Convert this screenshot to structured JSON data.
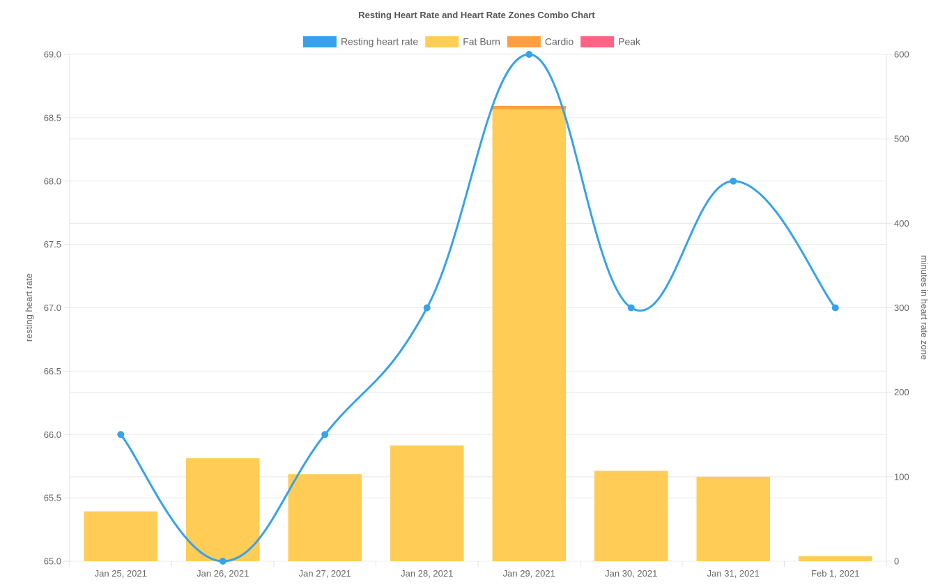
{
  "chart_data": {
    "type": "bar+line",
    "title": "Resting Heart Rate and Heart Rate Zones Combo Chart",
    "categories": [
      "Jan 25, 2021",
      "Jan 26, 2021",
      "Jan 27, 2021",
      "Jan 28, 2021",
      "Jan 29, 2021",
      "Jan 30, 2021",
      "Jan 31, 2021",
      "Feb 1, 2021"
    ],
    "y_left": {
      "label": "resting heart rate",
      "min": 65.0,
      "max": 69.0,
      "step": 0.5,
      "ticks": [
        "65.0",
        "65.5",
        "66.0",
        "66.5",
        "67.0",
        "67.5",
        "68.0",
        "68.5",
        "69.0"
      ]
    },
    "y_right": {
      "label": "minutes in heart rate zone",
      "min": 0,
      "max": 600,
      "step": 100,
      "ticks": [
        "0",
        "100",
        "200",
        "300",
        "400",
        "500",
        "600"
      ]
    },
    "legend_position": "top",
    "line_series": {
      "name": "Resting heart rate",
      "axis": "left",
      "color": "#36a2eb",
      "values": [
        66,
        65,
        66,
        67,
        69,
        67,
        68,
        67
      ]
    },
    "bar_series": [
      {
        "name": "Fat Burn",
        "axis": "right",
        "color": "#ffcd56",
        "values": [
          59,
          122,
          103,
          137,
          535,
          107,
          100,
          6
        ]
      },
      {
        "name": "Cardio",
        "axis": "right",
        "color": "#ff9f40",
        "values": [
          0,
          0,
          0,
          0,
          4,
          0,
          0,
          0
        ]
      },
      {
        "name": "Peak",
        "axis": "right",
        "color": "#ff6384",
        "values": [
          0,
          0,
          0,
          0,
          0,
          0,
          0,
          0
        ]
      }
    ]
  }
}
